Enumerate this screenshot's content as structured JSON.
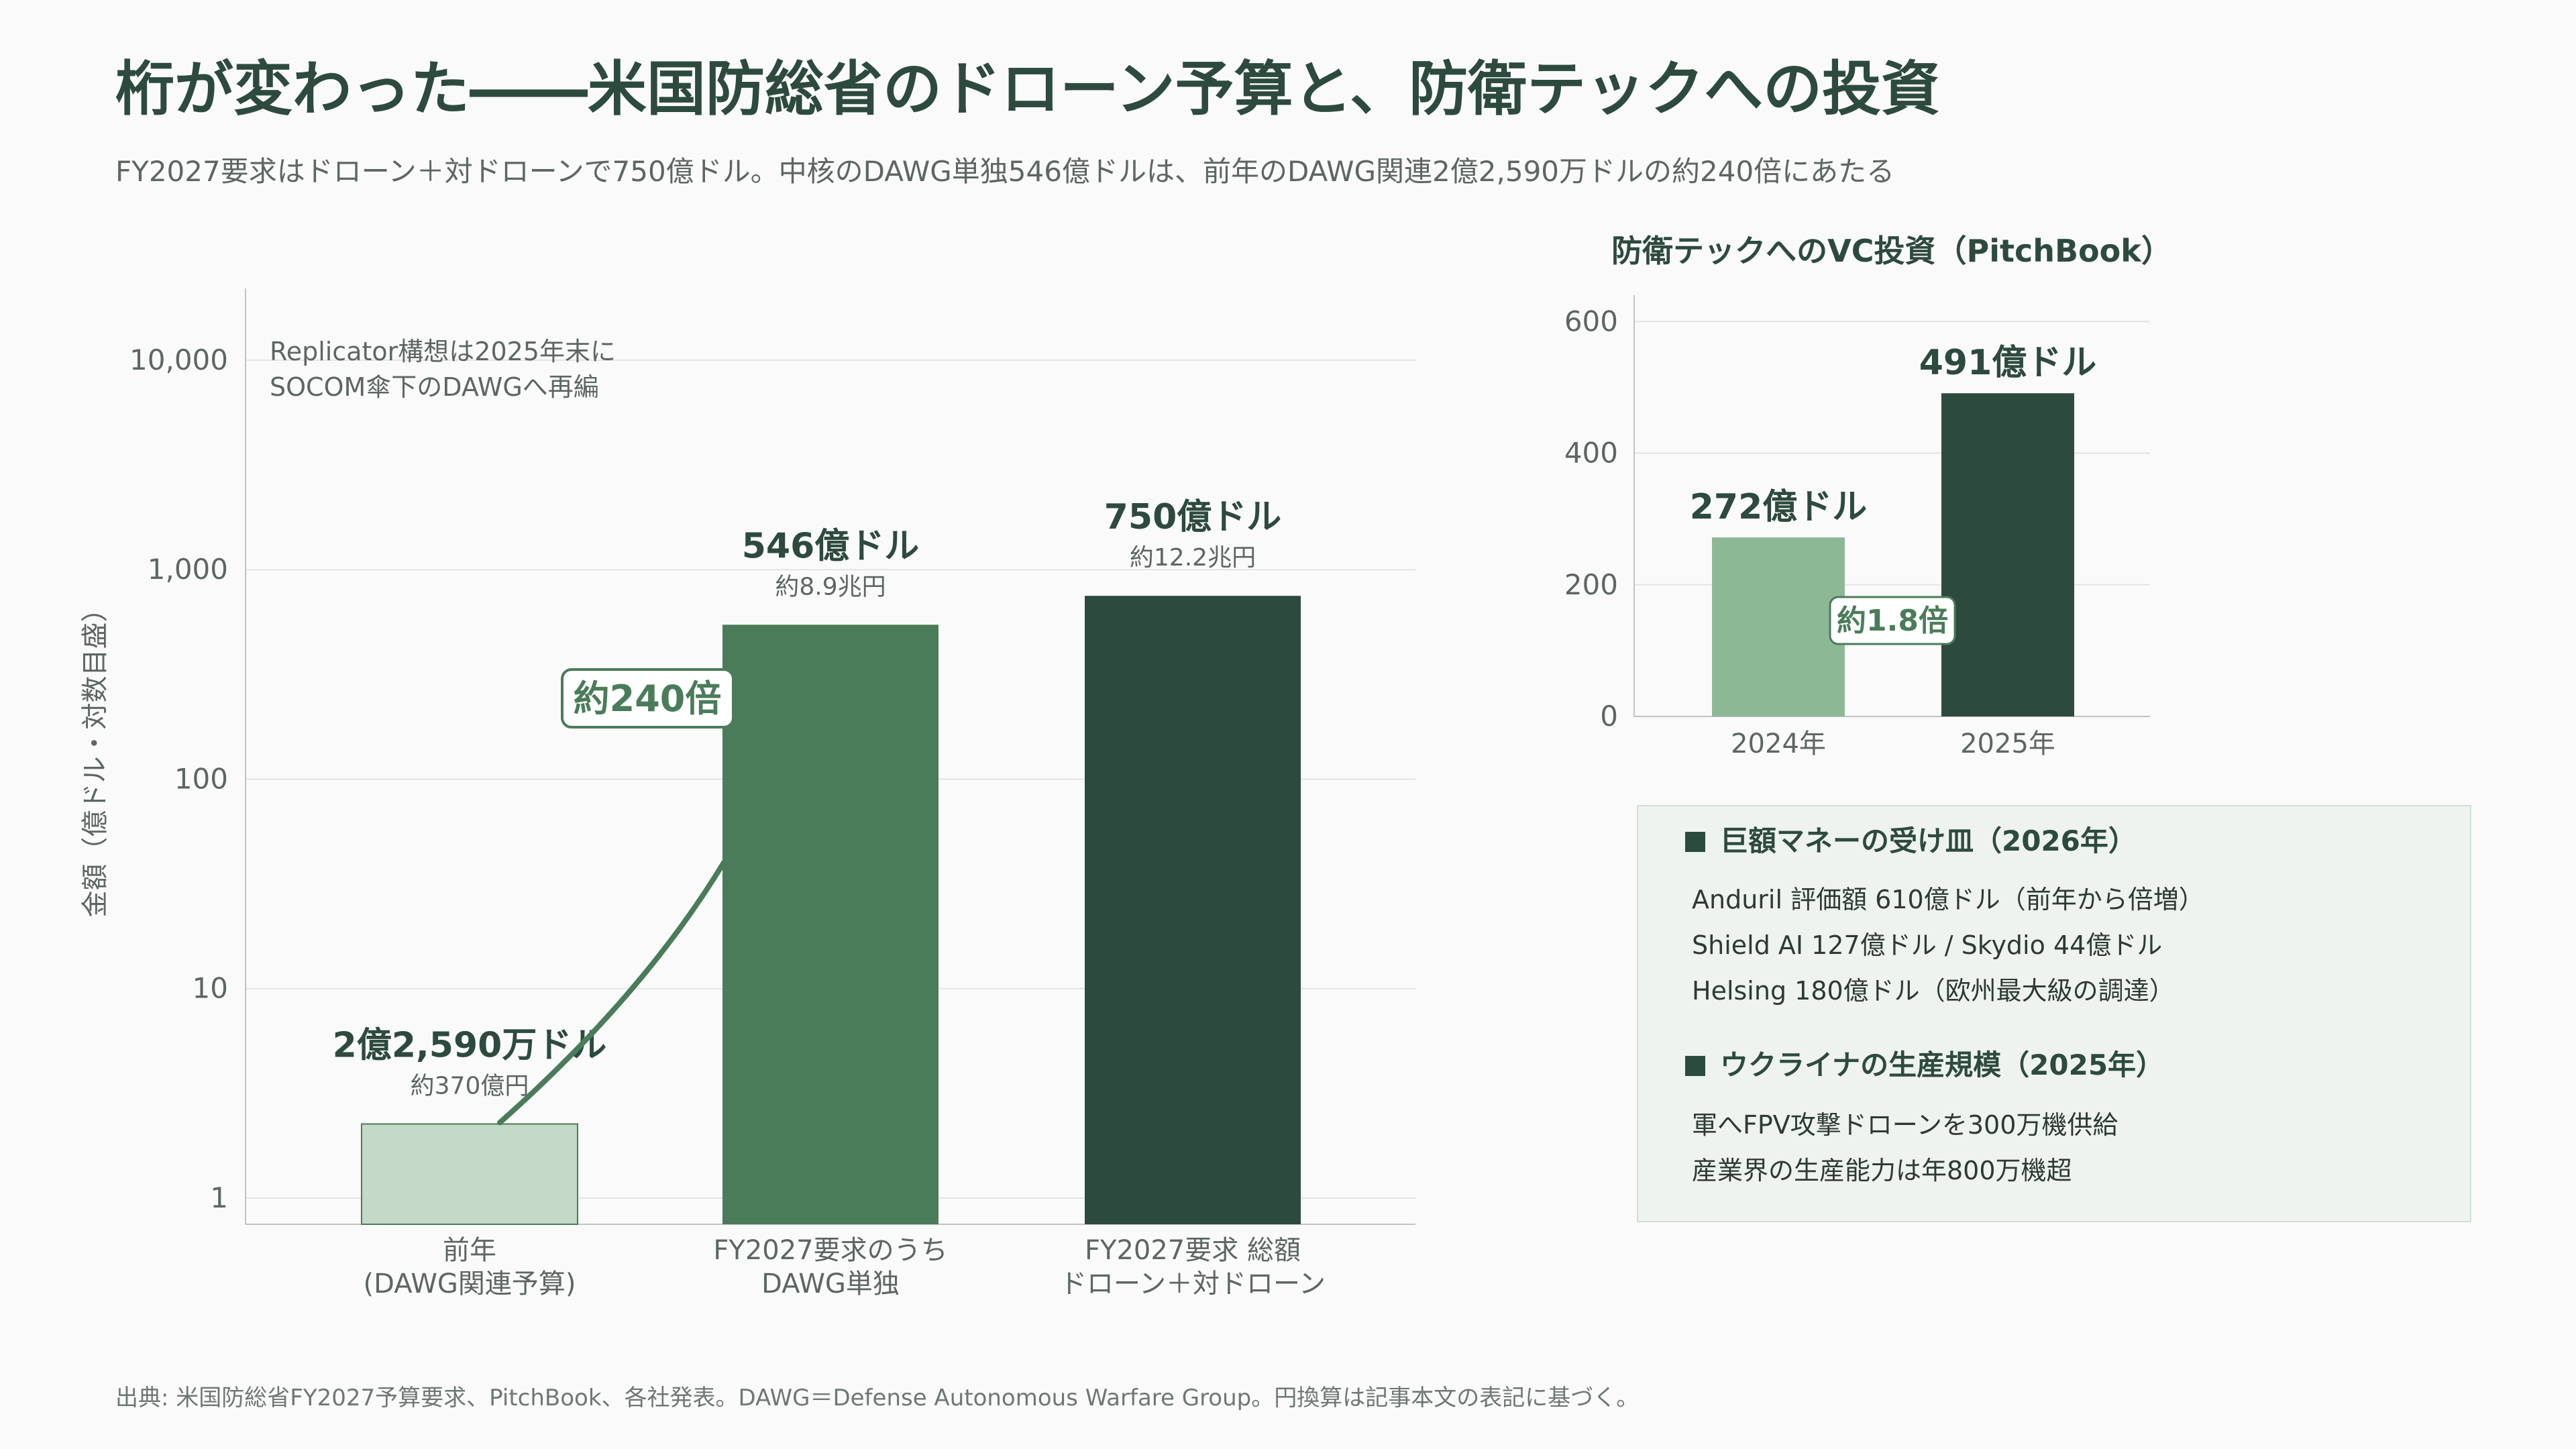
{
  "title": "桁が変わった――米国防総省のドローン予算と、防衛テックへの投資",
  "subtitle": "FY2027要求はドローン＋対ドローンで750億ドル。中核のDAWG単独546億ドルは、前年のDAWG関連2億2,590万ドルの約240倍にあたる",
  "source": "出典: 米国防総省FY2027予算要求、PitchBook、各社発表。DAWG＝Defense Autonomous Warfare Group。円換算は記事本文の表記に基づく。",
  "colors": {
    "light": "#c5d9c8",
    "mid": "#4a7c59",
    "dark": "#2d4a3e",
    "vc_light": "#8db896",
    "grid": "#e2e4e2"
  },
  "chart_data": [
    {
      "type": "bar",
      "scale": "log",
      "ylabel": "金額（億ドル・対数目盛）",
      "ylim": [
        0.75,
        22000
      ],
      "yticks": [
        1,
        10,
        100,
        1000,
        10000
      ],
      "yticklabels": [
        "1",
        "10",
        "100",
        "1,000",
        "10,000"
      ],
      "categories": [
        [
          "前年",
          "(DAWG関連予算)"
        ],
        [
          "FY2027要求のうち",
          "DAWG単独"
        ],
        [
          "FY2027要求 総額",
          "ドローン＋対ドローン"
        ]
      ],
      "values": [
        2.259,
        546,
        750
      ],
      "value_labels": [
        "2億2,590万ドル",
        "546億ドル",
        "750億ドル"
      ],
      "sub_labels": [
        "約370億円",
        "約8.9兆円",
        "約12.2兆円"
      ],
      "annotation": [
        "Replicator構想は2025年末に",
        "SOCOM傘下のDAWGへ再編"
      ],
      "ratio_label": "約240倍",
      "grid": true
    },
    {
      "type": "bar",
      "title": "防衛テックへのVC投資（PitchBook）",
      "categories": [
        "2024年",
        "2025年"
      ],
      "values": [
        272,
        491
      ],
      "value_labels": [
        "272億ドル",
        "491億ドル"
      ],
      "ylim": [
        0,
        640
      ],
      "yticks": [
        0,
        200,
        400,
        600
      ],
      "ratio_label": "約1.8倍",
      "grid": true
    }
  ],
  "info": {
    "section1_title": "巨額マネーの受け皿（2026年）",
    "section1_lines": [
      "Anduril 評価額 610億ドル（前年から倍増）",
      "Shield AI 127億ドル / Skydio 44億ドル",
      "Helsing 180億ドル（欧州最大級の調達）"
    ],
    "section2_title": "ウクライナの生産規模（2025年）",
    "section2_lines": [
      "軍へFPV攻撃ドローンを300万機供給",
      "産業界の生産能力は年800万機超"
    ]
  }
}
